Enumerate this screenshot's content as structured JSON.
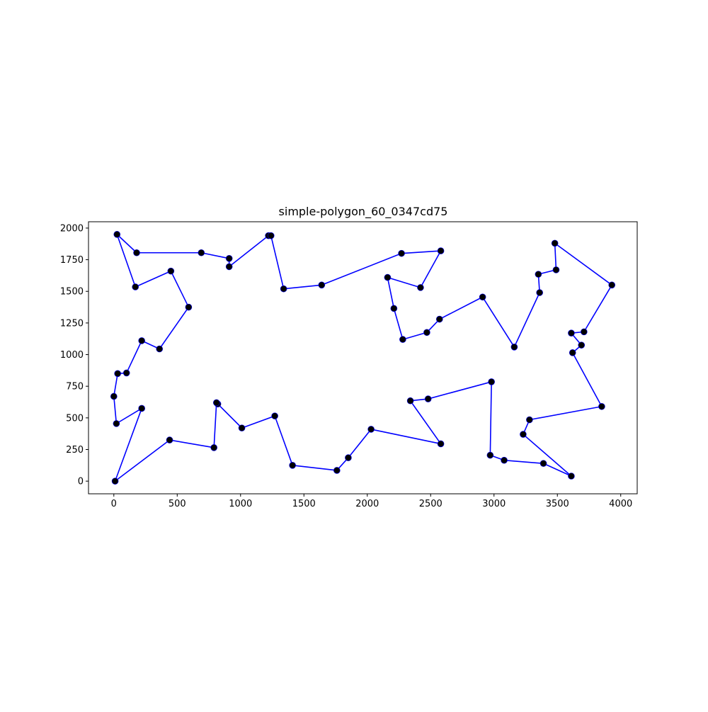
{
  "chart_data": {
    "type": "scatter",
    "title": "simple-polygon_60_0347cd75",
    "xlabel": "",
    "ylabel": "",
    "xlim": [
      -200,
      4130
    ],
    "ylim": [
      -100,
      2050
    ],
    "xticks": [
      0,
      500,
      1000,
      1500,
      2000,
      2500,
      3000,
      3500,
      4000
    ],
    "yticks": [
      0,
      250,
      500,
      750,
      1000,
      1250,
      1500,
      1750,
      2000
    ],
    "grid": false,
    "legend": "none",
    "closed": true,
    "line_color": "#0000ff",
    "point_color": "#000000",
    "x": [
      10,
      220,
      20,
      0,
      30,
      100,
      220,
      360,
      590,
      450,
      170,
      25,
      180,
      690,
      910,
      910,
      1220,
      1240,
      1340,
      1640,
      2270,
      2580,
      2420,
      2160,
      2210,
      2280,
      2470,
      2570,
      2910,
      3160,
      3360,
      3350,
      3490,
      3480,
      3930,
      3710,
      3610,
      3690,
      3620,
      3850,
      3280,
      3230,
      3610,
      3390,
      3080,
      2970,
      2980,
      2480,
      2340,
      2580,
      2030,
      1850,
      1760,
      1410,
      1270,
      1010,
      820,
      810,
      790,
      440
    ],
    "y": [
      0,
      575,
      455,
      670,
      850,
      855,
      1110,
      1045,
      1375,
      1660,
      1535,
      1950,
      1805,
      1805,
      1760,
      1695,
      1940,
      1940,
      1520,
      1550,
      1800,
      1820,
      1530,
      1610,
      1365,
      1120,
      1175,
      1280,
      1455,
      1060,
      1490,
      1635,
      1670,
      1880,
      1550,
      1180,
      1170,
      1075,
      1015,
      590,
      485,
      370,
      40,
      140,
      165,
      205,
      785,
      650,
      635,
      295,
      410,
      185,
      85,
      125,
      515,
      420,
      610,
      620,
      265,
      325
    ]
  }
}
